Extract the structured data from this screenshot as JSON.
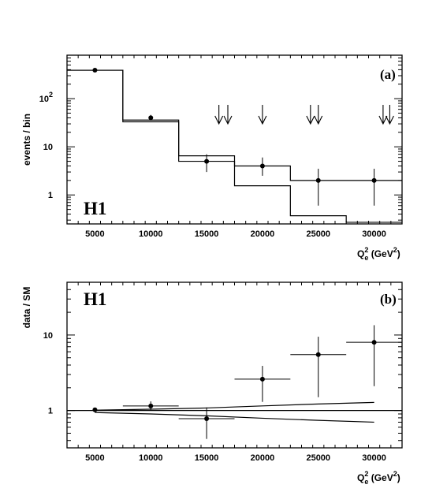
{
  "chart_data": [
    {
      "type": "step-histogram-with-points",
      "panel_label": "(a)",
      "experiment_label": "H1",
      "xlabel": {
        "main": "Q",
        "sub": "e",
        "sup": "2",
        "unit_open": " (GeV",
        "unit_sup": "2",
        "unit_close": ")"
      },
      "ylabel": "events / bin",
      "xlim": [
        2500,
        32500
      ],
      "ylim": [
        0.25,
        800
      ],
      "yscale": "log",
      "x_ticks": [
        5000,
        10000,
        15000,
        20000,
        25000,
        30000
      ],
      "x_tick_labels": [
        "5000",
        "10000",
        "15000",
        "20000",
        "25000",
        "30000"
      ],
      "y_ticks": [
        1,
        10,
        100
      ],
      "y_tick_labels": [
        {
          "base": "1",
          "sup": ""
        },
        {
          "base": "10",
          "sup": ""
        },
        {
          "base": "10",
          "sup": "2"
        }
      ],
      "bin_edges": [
        2500,
        7500,
        12500,
        17500,
        22500,
        27500,
        32500
      ],
      "series": [
        {
          "role": "data",
          "x": [
            5000,
            10000,
            15000,
            20000,
            25000,
            30000
          ],
          "y": [
            390,
            40,
            5,
            4,
            2,
            2
          ],
          "y_err_low": [
            370,
            35,
            3,
            2.5,
            0.6,
            0.6
          ],
          "y_err_high": [
            410,
            46,
            7,
            6,
            3.5,
            3.5
          ]
        },
        {
          "role": "expectation",
          "values": [
            390,
            33,
            6.5,
            1.55,
            0.37,
            0.27
          ]
        },
        {
          "role": "expectation",
          "values": [
            390,
            36,
            5,
            4,
            2,
            2
          ]
        }
      ],
      "arrows_x": [
        16100,
        16900,
        20000,
        24300,
        25000,
        30800,
        31400
      ]
    },
    {
      "type": "ratio-with-band",
      "panel_label": "(b)",
      "experiment_label": "H1",
      "xlabel": {
        "main": "Q",
        "sub": "e",
        "sup": "2",
        "unit_open": " (GeV",
        "unit_sup": "2",
        "unit_close": ")"
      },
      "ylabel": "data / SM",
      "xlim": [
        2500,
        32500
      ],
      "ylim": [
        0.32,
        50
      ],
      "yscale": "log",
      "x_ticks": [
        5000,
        10000,
        15000,
        20000,
        25000,
        30000
      ],
      "x_tick_labels": [
        "5000",
        "10000",
        "15000",
        "20000",
        "25000",
        "30000"
      ],
      "y_ticks": [
        1,
        10
      ],
      "y_tick_labels": [
        {
          "base": "1",
          "sup": ""
        },
        {
          "base": "10",
          "sup": ""
        }
      ],
      "reference": 1,
      "series": [
        {
          "role": "data",
          "x": [
            5000,
            10000,
            15000,
            20000,
            25000,
            30000
          ],
          "x_halfwidth": [
            0,
            2500,
            2500,
            2500,
            2500,
            2500
          ],
          "y": [
            1.02,
            1.15,
            0.78,
            2.6,
            5.5,
            8.0
          ],
          "y_err_low": [
            0.99,
            1.0,
            0.42,
            1.3,
            1.5,
            2.1
          ],
          "y_err_high": [
            1.05,
            1.32,
            1.1,
            3.9,
            9.5,
            13.5
          ]
        },
        {
          "role": "band-upper",
          "x": [
            5000,
            10000,
            15000,
            20000,
            25000,
            30000
          ],
          "y": [
            1.01,
            1.04,
            1.08,
            1.15,
            1.22,
            1.28
          ]
        },
        {
          "role": "band-lower",
          "x": [
            5000,
            10000,
            15000,
            20000,
            25000,
            30000
          ],
          "y": [
            0.94,
            0.9,
            0.85,
            0.79,
            0.74,
            0.7
          ]
        }
      ]
    }
  ]
}
